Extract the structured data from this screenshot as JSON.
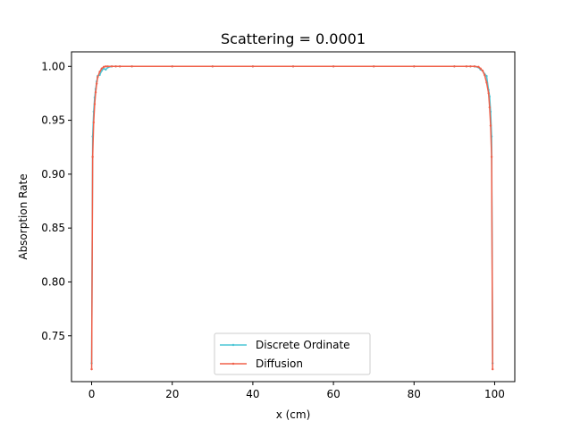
{
  "chart_data": {
    "type": "line",
    "title": "Scattering = 0.0001",
    "xlabel": "x (cm)",
    "ylabel": "Absorption Rate",
    "xlim": [
      -5,
      105
    ],
    "ylim": [
      0.7075,
      1.0135
    ],
    "xticks": [
      0,
      20,
      40,
      60,
      80,
      100
    ],
    "yticks": [
      0.75,
      0.8,
      0.85,
      0.9,
      0.95,
      1.0
    ],
    "xtick_labels": [
      "0",
      "20",
      "40",
      "60",
      "80",
      "100"
    ],
    "ytick_labels": [
      "0.75",
      "0.80",
      "0.85",
      "0.90",
      "0.95",
      "1.00"
    ],
    "grid": false,
    "legend_position": "bottom-center",
    "series": [
      {
        "name": "Discrete Ordinate",
        "color": "#4ac6d6",
        "marker": "dot",
        "x": [
          0,
          0.25,
          0.5,
          0.75,
          1.0,
          1.25,
          1.5,
          2.0,
          2.5,
          3.0,
          3.5,
          4.0,
          5.0,
          6.0,
          7.0,
          10,
          20,
          30,
          40,
          50,
          60,
          70,
          80,
          90,
          93,
          94,
          95,
          96,
          96.5,
          97,
          97.5,
          98,
          98.5,
          98.75,
          99.0,
          99.25,
          99.5
        ],
        "y": [
          0.7245,
          0.935,
          0.958,
          0.971,
          0.979,
          0.986,
          0.991,
          0.992,
          0.996,
          0.998,
          0.997,
          0.999,
          1.0,
          1.0,
          1.0,
          1.0,
          1.0,
          1.0,
          1.0,
          1.0,
          1.0,
          1.0,
          1.0,
          1.0,
          1.0,
          1.0,
          1.0,
          0.999,
          0.997,
          0.996,
          0.993,
          0.991,
          0.978,
          0.972,
          0.958,
          0.935,
          0.7245
        ]
      },
      {
        "name": "Diffusion",
        "color": "#f0604a",
        "marker": "dot",
        "x": [
          0,
          0.25,
          0.5,
          0.75,
          1.0,
          1.25,
          1.5,
          2.0,
          2.5,
          3.0,
          3.5,
          4.0,
          5.0,
          6.0,
          7.0,
          10,
          20,
          30,
          40,
          50,
          60,
          70,
          80,
          90,
          93,
          94,
          95,
          96,
          96.5,
          97,
          97.5,
          98,
          98.5,
          98.75,
          99.0,
          99.25,
          99.5
        ],
        "y": [
          0.719,
          0.916,
          0.948,
          0.965,
          0.976,
          0.984,
          0.99,
          0.995,
          0.998,
          0.9995,
          1.0,
          1.0,
          1.0,
          1.0,
          1.0,
          1.0,
          1.0,
          1.0,
          1.0,
          1.0,
          1.0,
          1.0,
          1.0,
          1.0,
          1.0,
          1.0,
          1.0,
          0.9995,
          0.998,
          0.996,
          0.992,
          0.985,
          0.975,
          0.962,
          0.945,
          0.916,
          0.719
        ]
      }
    ]
  }
}
